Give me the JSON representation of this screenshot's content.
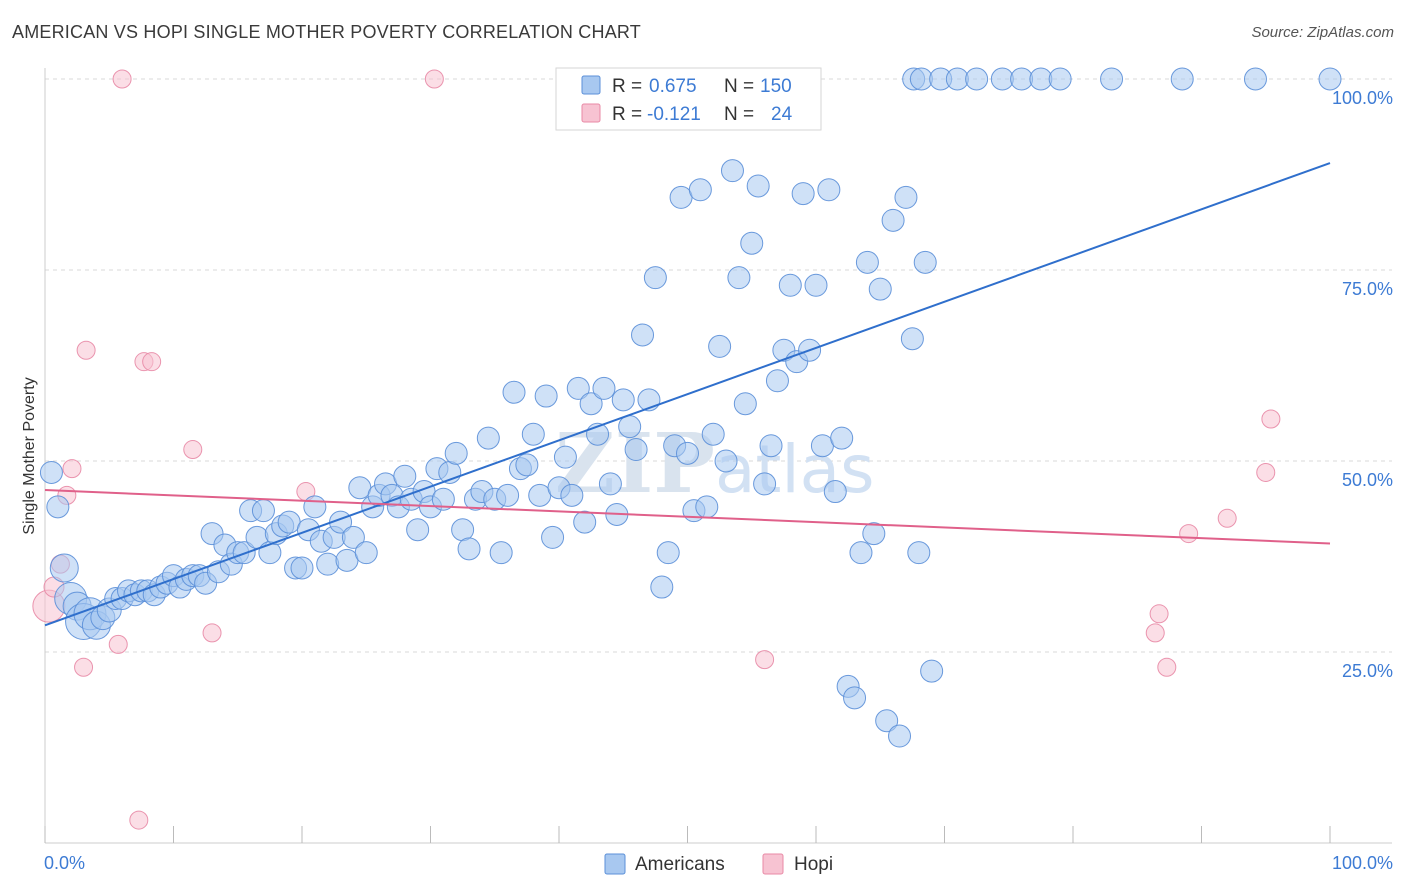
{
  "title": "AMERICAN VS HOPI SINGLE MOTHER POVERTY CORRELATION CHART",
  "source": "Source: ZipAtlas.com",
  "watermark": {
    "zip": "ZIP",
    "atlas": "atlas"
  },
  "colors": {
    "american_fill": "#a8c8f0",
    "american_stroke": "#5b8fd8",
    "american_line": "#2f6fcc",
    "hopi_fill": "#f7c3d2",
    "hopi_stroke": "#e88aa6",
    "hopi_line": "#e0608a",
    "grid": "#d8d8d8",
    "axis_text": "#3d7bd4",
    "label_text": "#333333"
  },
  "legend": {
    "rows": [
      {
        "r_label": "R = ",
        "r_value": "0.675",
        "n_label": "N = ",
        "n_value": "150"
      },
      {
        "r_label": "R = ",
        "r_value": "-0.121",
        "n_label": "N = ",
        "n_value": "24"
      }
    ]
  },
  "chart_data": {
    "type": "scatter",
    "xlabel": "",
    "ylabel": "Single Mother Poverty",
    "xlim": [
      0,
      100
    ],
    "ylim": [
      0,
      100
    ],
    "y_ticks": [
      25,
      50,
      75,
      100
    ],
    "y_tick_labels": [
      "25.0%",
      "50.0%",
      "75.0%",
      "100.0%"
    ],
    "x_tick_labels": [
      "0.0%",
      "100.0%"
    ],
    "grid": true,
    "legend_position": "bottom-center",
    "series": [
      {
        "name": "Americans",
        "trend": {
          "x1": 0,
          "y1": 28.5,
          "x2": 100,
          "y2": 89
        },
        "points": [
          [
            0.5,
            48.5,
            11
          ],
          [
            1.0,
            44,
            11
          ],
          [
            1.5,
            36,
            14
          ],
          [
            2.0,
            32,
            16
          ],
          [
            2.5,
            31,
            14
          ],
          [
            3.0,
            29,
            18
          ],
          [
            3.5,
            30,
            16
          ],
          [
            4.0,
            28.5,
            14
          ],
          [
            4.5,
            29.5,
            12
          ],
          [
            5.0,
            30.5,
            12
          ],
          [
            5.5,
            32,
            11
          ],
          [
            6.0,
            32,
            11
          ],
          [
            6.5,
            33,
            11
          ],
          [
            7.0,
            32.5,
            11
          ],
          [
            7.5,
            33,
            11
          ],
          [
            8.0,
            33,
            11
          ],
          [
            8.5,
            32.5,
            11
          ],
          [
            9.0,
            33.5,
            11
          ],
          [
            9.5,
            34,
            11
          ],
          [
            10.0,
            35,
            11
          ],
          [
            10.5,
            33.5,
            11
          ],
          [
            11.0,
            34.5,
            11
          ],
          [
            11.5,
            35,
            11
          ],
          [
            12.0,
            35,
            11
          ],
          [
            12.5,
            34,
            11
          ],
          [
            13.0,
            40.5,
            11
          ],
          [
            13.5,
            35.5,
            11
          ],
          [
            14.0,
            39,
            11
          ],
          [
            14.5,
            36.5,
            11
          ],
          [
            15.0,
            38,
            11
          ],
          [
            15.5,
            38,
            11
          ],
          [
            16.0,
            43.5,
            11
          ],
          [
            16.5,
            40,
            11
          ],
          [
            17.0,
            43.5,
            11
          ],
          [
            17.5,
            38,
            11
          ],
          [
            18.0,
            40.5,
            11
          ],
          [
            18.5,
            41.5,
            11
          ],
          [
            19.0,
            42,
            11
          ],
          [
            19.5,
            36,
            11
          ],
          [
            20.0,
            36,
            11
          ],
          [
            20.5,
            41,
            11
          ],
          [
            21.0,
            44,
            11
          ],
          [
            21.5,
            39.5,
            11
          ],
          [
            22.0,
            36.5,
            11
          ],
          [
            22.5,
            40,
            11
          ],
          [
            23.0,
            42,
            11
          ],
          [
            23.5,
            37,
            11
          ],
          [
            24.0,
            40,
            11
          ],
          [
            24.5,
            46.5,
            11
          ],
          [
            25.0,
            38,
            11
          ],
          [
            25.5,
            44,
            11
          ],
          [
            26.0,
            45.5,
            11
          ],
          [
            26.5,
            47,
            11
          ],
          [
            27.0,
            45.5,
            11
          ],
          [
            27.5,
            44,
            11
          ],
          [
            28.0,
            48,
            11
          ],
          [
            28.5,
            45,
            11
          ],
          [
            29.0,
            41,
            11
          ],
          [
            29.5,
            46,
            11
          ],
          [
            30.0,
            44,
            11
          ],
          [
            30.5,
            49,
            11
          ],
          [
            31.0,
            45,
            11
          ],
          [
            31.5,
            48.5,
            11
          ],
          [
            32.0,
            51,
            11
          ],
          [
            32.5,
            41,
            11
          ],
          [
            33.0,
            38.5,
            11
          ],
          [
            33.5,
            45,
            11
          ],
          [
            34.0,
            46,
            11
          ],
          [
            34.5,
            53,
            11
          ],
          [
            35.0,
            45,
            11
          ],
          [
            35.5,
            38,
            11
          ],
          [
            36.0,
            45.5,
            11
          ],
          [
            36.5,
            59,
            11
          ],
          [
            37.0,
            49,
            11
          ],
          [
            37.5,
            49.5,
            11
          ],
          [
            38.0,
            53.5,
            11
          ],
          [
            38.5,
            45.5,
            11
          ],
          [
            39.0,
            58.5,
            11
          ],
          [
            39.5,
            40,
            11
          ],
          [
            40.0,
            46.5,
            11
          ],
          [
            40.5,
            50.5,
            11
          ],
          [
            41.0,
            45.5,
            11
          ],
          [
            41.5,
            59.5,
            11
          ],
          [
            42.0,
            42,
            11
          ],
          [
            42.5,
            57.5,
            11
          ],
          [
            43.0,
            53.5,
            11
          ],
          [
            43.5,
            59.5,
            11
          ],
          [
            44.0,
            47,
            11
          ],
          [
            44.5,
            43,
            11
          ],
          [
            45.0,
            58,
            11
          ],
          [
            45.5,
            54.5,
            11
          ],
          [
            46.0,
            51.5,
            11
          ],
          [
            46.5,
            66.5,
            11
          ],
          [
            47.0,
            58,
            11
          ],
          [
            47.5,
            74,
            11
          ],
          [
            48.0,
            33.5,
            11
          ],
          [
            48.5,
            38,
            11
          ],
          [
            49.0,
            52,
            11
          ],
          [
            49.5,
            84.5,
            11
          ],
          [
            50.0,
            51,
            11
          ],
          [
            50.5,
            43.5,
            11
          ],
          [
            51.0,
            85.5,
            11
          ],
          [
            51.5,
            44,
            11
          ],
          [
            52.0,
            53.5,
            11
          ],
          [
            52.5,
            65,
            11
          ],
          [
            53.0,
            50,
            11
          ],
          [
            53.5,
            88,
            11
          ],
          [
            54.0,
            74,
            11
          ],
          [
            54.5,
            57.5,
            11
          ],
          [
            55.0,
            78.5,
            11
          ],
          [
            55.5,
            86,
            11
          ],
          [
            56.0,
            47,
            11
          ],
          [
            56.5,
            52,
            11
          ],
          [
            57.0,
            60.5,
            11
          ],
          [
            57.5,
            64.5,
            11
          ],
          [
            58.0,
            73,
            11
          ],
          [
            58.5,
            63,
            11
          ],
          [
            59.0,
            85,
            11
          ],
          [
            59.5,
            64.5,
            11
          ],
          [
            60.0,
            73,
            11
          ],
          [
            60.5,
            52,
            11
          ],
          [
            61.0,
            85.5,
            11
          ],
          [
            61.5,
            46,
            11
          ],
          [
            62.0,
            53,
            11
          ],
          [
            62.5,
            20.5,
            11
          ],
          [
            63.0,
            19,
            11
          ],
          [
            63.5,
            38,
            11
          ],
          [
            64.0,
            76,
            11
          ],
          [
            64.5,
            40.5,
            11
          ],
          [
            65.0,
            72.5,
            11
          ],
          [
            65.5,
            16,
            11
          ],
          [
            66.0,
            81.5,
            11
          ],
          [
            66.5,
            14,
            11
          ],
          [
            67.0,
            84.5,
            11
          ],
          [
            67.5,
            66,
            11
          ],
          [
            68.0,
            38,
            11
          ],
          [
            68.5,
            76,
            11
          ],
          [
            69.0,
            22.5,
            11
          ],
          [
            67.6,
            100,
            11
          ],
          [
            68.2,
            100,
            11
          ],
          [
            69.7,
            100,
            11
          ],
          [
            71.0,
            100,
            11
          ],
          [
            72.5,
            100,
            11
          ],
          [
            74.5,
            100,
            11
          ],
          [
            76.0,
            100,
            11
          ],
          [
            77.5,
            100,
            11
          ],
          [
            79.0,
            100,
            11
          ],
          [
            83.0,
            100,
            11
          ],
          [
            88.5,
            100,
            11
          ],
          [
            94.2,
            100,
            11
          ],
          [
            100,
            100,
            11
          ]
        ]
      },
      {
        "name": "Hopi",
        "trend": {
          "x1": 0,
          "y1": 46.2,
          "x2": 100,
          "y2": 39.2
        },
        "points": [
          [
            0.3,
            31,
            16
          ],
          [
            0.7,
            33.5,
            10
          ],
          [
            1.2,
            36.5,
            9
          ],
          [
            1.7,
            45.5,
            9
          ],
          [
            2.1,
            49,
            9
          ],
          [
            3.0,
            23,
            9
          ],
          [
            3.2,
            64.5,
            9
          ],
          [
            5.7,
            26,
            9
          ],
          [
            6.0,
            100,
            9
          ],
          [
            7.3,
            3,
            9
          ],
          [
            7.7,
            63,
            9
          ],
          [
            8.3,
            63,
            9
          ],
          [
            11.5,
            51.5,
            9
          ],
          [
            13.0,
            27.5,
            9
          ],
          [
            20.3,
            46,
            9
          ],
          [
            30.3,
            100,
            9
          ],
          [
            56.0,
            24,
            9
          ],
          [
            87.3,
            23,
            9
          ],
          [
            86.4,
            27.5,
            9
          ],
          [
            86.7,
            30,
            9
          ],
          [
            89.0,
            40.5,
            9
          ],
          [
            92.0,
            42.5,
            9
          ],
          [
            95.0,
            48.5,
            9
          ],
          [
            95.4,
            55.5,
            9
          ]
        ]
      }
    ]
  }
}
